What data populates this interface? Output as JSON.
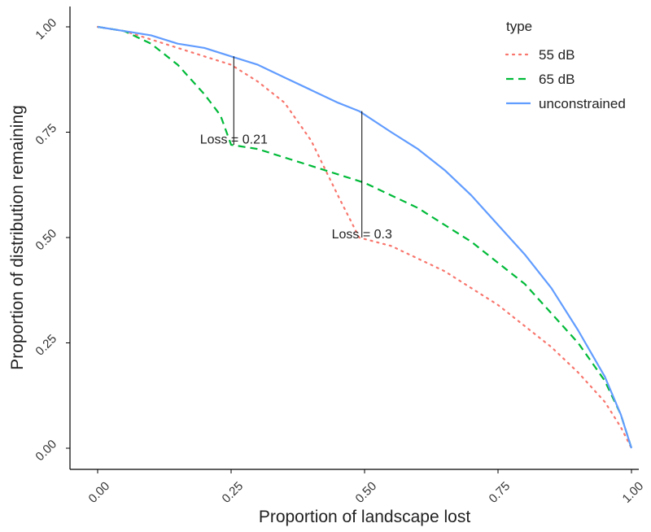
{
  "chart_data": {
    "type": "line",
    "xlabel": "Proportion of landscape lost",
    "ylabel": "Proportion of distribution remaining",
    "xlim": [
      0,
      1
    ],
    "ylim": [
      0,
      1
    ],
    "x_ticks": [
      "0.00",
      "0.25",
      "0.50",
      "0.75",
      "1.00"
    ],
    "y_ticks": [
      "0.00",
      "0.25",
      "0.50",
      "0.75",
      "1.00"
    ],
    "grid": false,
    "legend": {
      "title": "type",
      "placement": "top-right"
    },
    "series": [
      {
        "name": "55 dB",
        "color": "#F8766D",
        "dash": "dotted",
        "x": [
          0,
          0.05,
          0.1,
          0.15,
          0.2,
          0.25,
          0.3,
          0.35,
          0.4,
          0.45,
          0.49,
          0.55,
          0.6,
          0.65,
          0.7,
          0.75,
          0.8,
          0.85,
          0.9,
          0.95,
          0.98,
          1.0
        ],
        "y": [
          1.0,
          0.99,
          0.97,
          0.95,
          0.93,
          0.91,
          0.87,
          0.82,
          0.73,
          0.6,
          0.5,
          0.48,
          0.45,
          0.42,
          0.38,
          0.34,
          0.29,
          0.24,
          0.18,
          0.11,
          0.05,
          0.0
        ]
      },
      {
        "name": "65 dB",
        "color": "#00BA38",
        "dash": "dashed",
        "x": [
          0,
          0.05,
          0.1,
          0.15,
          0.2,
          0.23,
          0.25,
          0.3,
          0.35,
          0.4,
          0.45,
          0.5,
          0.55,
          0.6,
          0.65,
          0.7,
          0.75,
          0.8,
          0.85,
          0.9,
          0.95,
          0.98,
          1.0
        ],
        "y": [
          1.0,
          0.99,
          0.96,
          0.91,
          0.84,
          0.79,
          0.72,
          0.71,
          0.69,
          0.67,
          0.65,
          0.63,
          0.6,
          0.57,
          0.53,
          0.49,
          0.44,
          0.39,
          0.32,
          0.25,
          0.16,
          0.08,
          0.0
        ]
      },
      {
        "name": "unconstrained",
        "color": "#619CFF",
        "dash": "solid",
        "x": [
          0,
          0.05,
          0.1,
          0.15,
          0.2,
          0.25,
          0.3,
          0.35,
          0.4,
          0.45,
          0.49,
          0.55,
          0.6,
          0.65,
          0.7,
          0.75,
          0.8,
          0.85,
          0.9,
          0.95,
          0.98,
          1.0
        ],
        "y": [
          1.0,
          0.99,
          0.98,
          0.96,
          0.95,
          0.93,
          0.91,
          0.88,
          0.85,
          0.82,
          0.8,
          0.75,
          0.71,
          0.66,
          0.6,
          0.53,
          0.46,
          0.38,
          0.28,
          0.17,
          0.08,
          0.0
        ]
      }
    ],
    "annotations": [
      {
        "text": "Loss = 0.21",
        "x": 0.255,
        "y_top": 0.93,
        "y_bottom": 0.72,
        "label_y": 0.735
      },
      {
        "text": "Loss = 0.3",
        "x": 0.495,
        "y_top": 0.8,
        "y_bottom": 0.5,
        "label_y": 0.51
      }
    ]
  }
}
